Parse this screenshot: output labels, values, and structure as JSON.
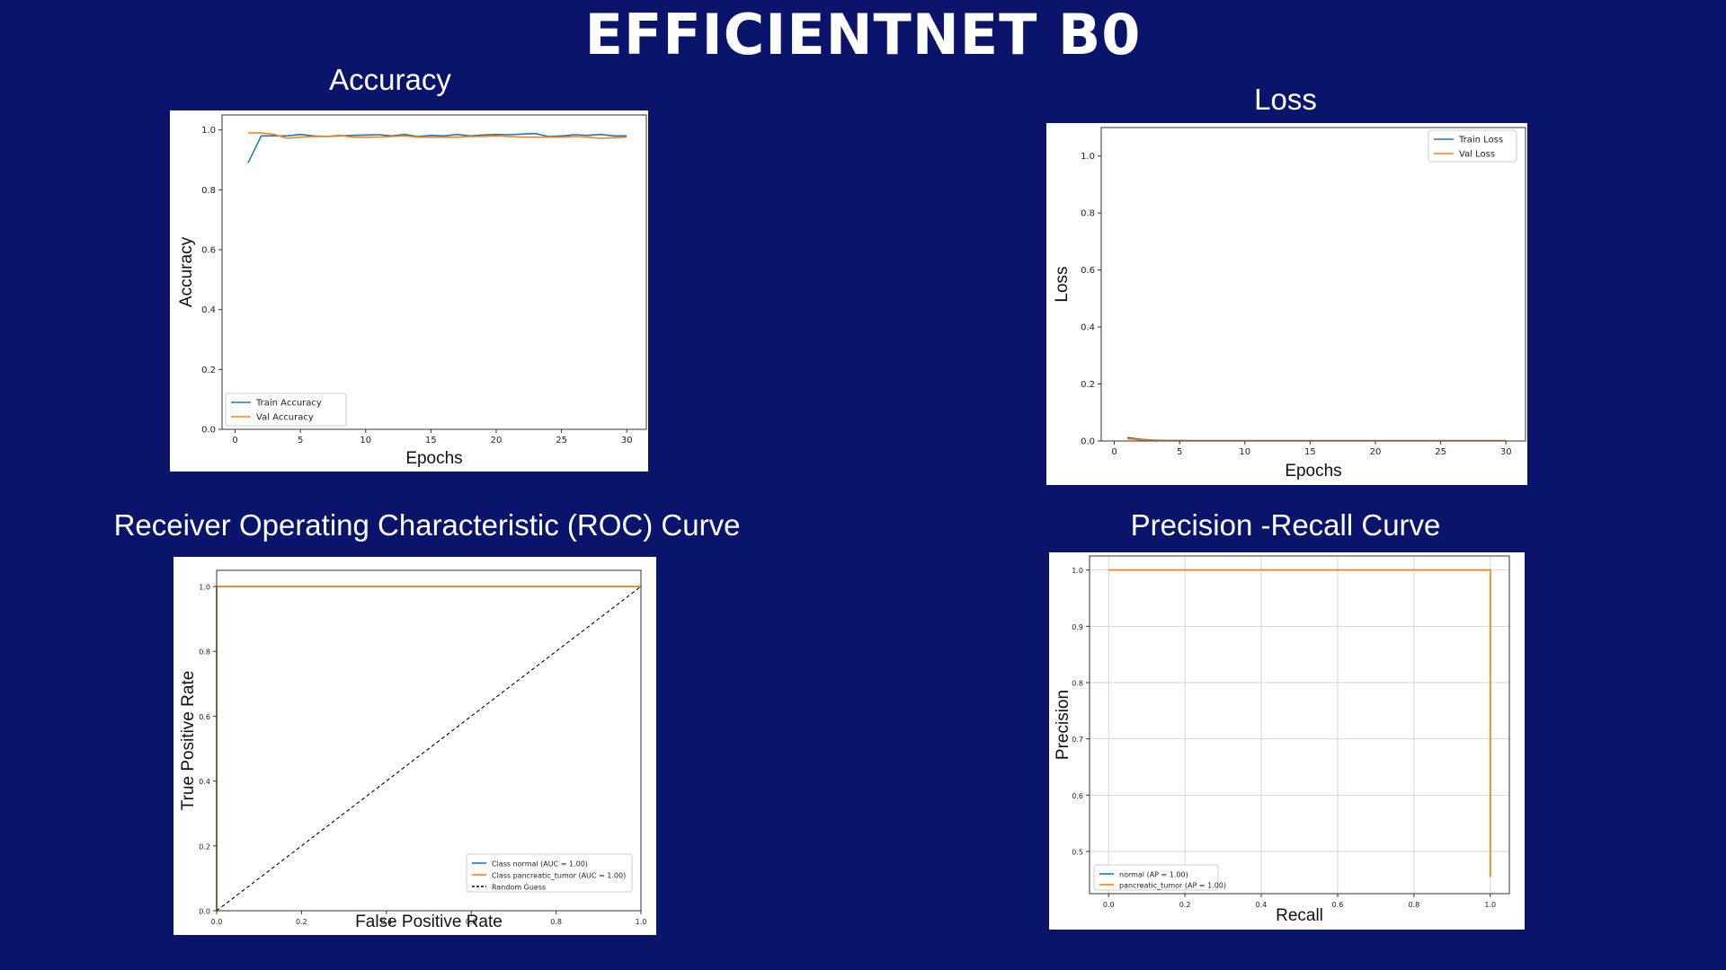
{
  "page": {
    "title": "EFFICIENTNET B0",
    "sections": {
      "accuracy": "Accuracy",
      "loss": "Loss",
      "roc": "Receiver Operating Characteristic (ROC) Curve",
      "pr": "Precision -Recall Curve"
    }
  },
  "colors": {
    "background": "#0b146b",
    "blue": "#1f77b4",
    "orange": "#ff7f0e",
    "black": "#000000"
  },
  "chart_data": [
    {
      "id": "accuracy",
      "type": "line",
      "xlabel": "Epochs",
      "ylabel": "Accuracy",
      "xlim": [
        -1,
        31.5
      ],
      "ylim": [
        0,
        1.05
      ],
      "xticks": [
        0,
        5,
        10,
        15,
        20,
        25,
        30
      ],
      "yticks": [
        0.0,
        0.2,
        0.4,
        0.6,
        0.8,
        1.0
      ],
      "grid": false,
      "legend_position": "lower-left",
      "series": [
        {
          "name": "Train Accuracy",
          "color": "#1f77b4",
          "x": [
            1,
            2,
            3,
            4,
            5,
            6,
            7,
            8,
            9,
            10,
            11,
            12,
            13,
            14,
            15,
            16,
            17,
            18,
            19,
            20,
            21,
            22,
            23,
            24,
            25,
            26,
            27,
            28,
            29,
            30
          ],
          "y": [
            0.89,
            0.98,
            0.98,
            0.98,
            0.985,
            0.98,
            0.978,
            0.98,
            0.982,
            0.983,
            0.984,
            0.98,
            0.985,
            0.978,
            0.982,
            0.98,
            0.985,
            0.98,
            0.983,
            0.985,
            0.984,
            0.986,
            0.988,
            0.978,
            0.98,
            0.984,
            0.982,
            0.985,
            0.98,
            0.98
          ]
        },
        {
          "name": "Val Accuracy",
          "color": "#ff7f0e",
          "x": [
            1,
            2,
            3,
            4,
            5,
            6,
            7,
            8,
            9,
            10,
            11,
            12,
            13,
            14,
            15,
            16,
            17,
            18,
            19,
            20,
            21,
            22,
            23,
            24,
            25,
            26,
            27,
            28,
            29,
            30
          ],
          "y": [
            0.99,
            0.99,
            0.985,
            0.972,
            0.976,
            0.978,
            0.978,
            0.982,
            0.976,
            0.976,
            0.976,
            0.978,
            0.98,
            0.976,
            0.976,
            0.976,
            0.976,
            0.978,
            0.978,
            0.98,
            0.978,
            0.976,
            0.976,
            0.976,
            0.976,
            0.978,
            0.976,
            0.972,
            0.974,
            0.976
          ]
        }
      ]
    },
    {
      "id": "loss",
      "type": "line",
      "xlabel": "Epochs",
      "ylabel": "Loss",
      "xlim": [
        -1,
        31.5
      ],
      "ylim": [
        0,
        1.1
      ],
      "xticks": [
        0,
        5,
        10,
        15,
        20,
        25,
        30
      ],
      "yticks": [
        0.0,
        0.2,
        0.4,
        0.6,
        0.8,
        1.0
      ],
      "grid": false,
      "legend_position": "top-right",
      "series": [
        {
          "name": "Train Loss",
          "color": "#1f77b4",
          "x": [
            1,
            2,
            3,
            4,
            5,
            6,
            7,
            8,
            9,
            10,
            11,
            12,
            13,
            14,
            15,
            16,
            17,
            18,
            19,
            20,
            21,
            22,
            23,
            24,
            25,
            26,
            27,
            28,
            29,
            30
          ],
          "y": [
            0.012,
            0.006,
            0.003,
            0.002,
            0.002,
            0.001,
            0.001,
            0.001,
            0.001,
            0.001,
            0.001,
            0.001,
            0.001,
            0.001,
            0.001,
            0.001,
            0.001,
            0.001,
            0.001,
            0.001,
            0.001,
            0.001,
            0.001,
            0.001,
            0.001,
            0.001,
            0.001,
            0.001,
            0.001,
            0.001
          ]
        },
        {
          "name": "Val Loss",
          "color": "#ff7f0e",
          "x": [
            1,
            2,
            3,
            4,
            5,
            6,
            7,
            8,
            9,
            10,
            11,
            12,
            13,
            14,
            15,
            16,
            17,
            18,
            19,
            20,
            21,
            22,
            23,
            24,
            25,
            26,
            27,
            28,
            29,
            30
          ],
          "y": [
            0.008,
            0.004,
            0.002,
            0.002,
            0.001,
            0.001,
            0.001,
            0.001,
            0.001,
            0.001,
            0.001,
            0.001,
            0.001,
            0.001,
            0.001,
            0.001,
            0.001,
            0.001,
            0.001,
            0.001,
            0.001,
            0.001,
            0.001,
            0.001,
            0.001,
            0.001,
            0.001,
            0.001,
            0.001,
            0.001
          ]
        }
      ]
    },
    {
      "id": "roc",
      "type": "line",
      "xlabel": "False Positive Rate",
      "ylabel": "True Positive Rate",
      "xlim": [
        0,
        1.0
      ],
      "ylim": [
        0,
        1.05
      ],
      "xticks": [
        0.0,
        0.2,
        0.4,
        0.6,
        0.8,
        1.0
      ],
      "yticks": [
        0.0,
        0.2,
        0.4,
        0.6,
        0.8,
        1.0
      ],
      "grid": false,
      "legend_position": "lower-right",
      "series": [
        {
          "name": "Class normal (AUC = 1.00)",
          "color": "#1f77b4",
          "x": [
            0,
            0,
            1
          ],
          "y": [
            0,
            1,
            1
          ]
        },
        {
          "name": "Class pancreatic_tumor (AUC = 1.00)",
          "color": "#ff7f0e",
          "x": [
            0,
            0,
            1
          ],
          "y": [
            0,
            1,
            1
          ]
        },
        {
          "name": "Random Guess",
          "color": "#000000",
          "dashed": true,
          "x": [
            0,
            1
          ],
          "y": [
            0,
            1
          ]
        }
      ]
    },
    {
      "id": "pr",
      "type": "line",
      "xlabel": "Recall",
      "ylabel": "Precision",
      "xlim": [
        -0.05,
        1.05
      ],
      "ylim": [
        0.425,
        1.025
      ],
      "xticks": [
        0.0,
        0.2,
        0.4,
        0.6,
        0.8,
        1.0
      ],
      "yticks": [
        0.5,
        0.6,
        0.7,
        0.8,
        0.9,
        1.0
      ],
      "grid": true,
      "legend_position": "lower-left",
      "series": [
        {
          "name": "normal (AP = 1.00)",
          "color": "#1f77b4",
          "x": [
            0,
            1,
            1
          ],
          "y": [
            1,
            1,
            0.455
          ]
        },
        {
          "name": "pancreatic_tumor (AP = 1.00)",
          "color": "#ff7f0e",
          "x": [
            0,
            1,
            1
          ],
          "y": [
            1,
            1,
            0.455
          ]
        }
      ]
    }
  ]
}
